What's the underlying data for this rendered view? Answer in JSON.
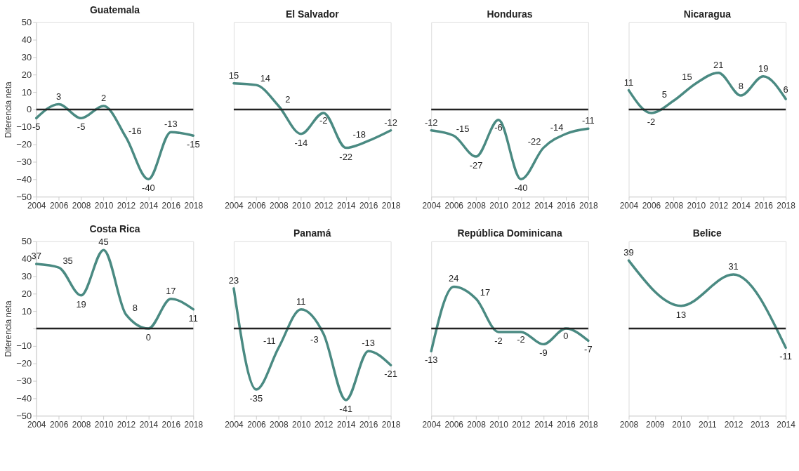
{
  "chart_data": [
    {
      "type": "line",
      "title": "Guatemala",
      "ylabel": "Diferencia neta",
      "x": [
        2004,
        2006,
        2008,
        2010,
        2012,
        2014,
        2016,
        2018
      ],
      "series": [
        {
          "color": "#4a8a82",
          "values": [
            -5,
            3,
            -5,
            2,
            -16,
            -40,
            -13,
            -15
          ]
        }
      ],
      "xlim": [
        2004,
        2018
      ],
      "xticks": [
        2004,
        2006,
        2008,
        2010,
        2012,
        2014,
        2016,
        2018
      ],
      "ylim": [
        -50,
        50
      ],
      "yticks": [
        -50,
        -40,
        -30,
        -20,
        -10,
        0,
        10,
        20,
        30,
        40,
        50
      ],
      "data_labels": true,
      "grid": false,
      "ref_lines": [
        {
          "axis": "y",
          "value": 0,
          "color": "#222222"
        }
      ]
    },
    {
      "type": "line",
      "title": "El Salvador",
      "x": [
        2004,
        2006,
        2008,
        2010,
        2012,
        2014,
        2016,
        2018
      ],
      "series": [
        {
          "color": "#4a8a82",
          "values": [
            15,
            14,
            2,
            -14,
            -2,
            -22,
            -18,
            -12
          ]
        }
      ],
      "xlim": [
        2004,
        2018
      ],
      "xticks": [
        2004,
        2006,
        2008,
        2010,
        2012,
        2014,
        2016,
        2018
      ],
      "ylim": [
        -50,
        50
      ],
      "tick_labels": "x",
      "data_labels": true,
      "grid": false,
      "ref_lines": [
        {
          "axis": "y",
          "value": 0,
          "color": "#222222"
        }
      ]
    },
    {
      "type": "line",
      "title": "Honduras",
      "x": [
        2004,
        2006,
        2008,
        2010,
        2012,
        2014,
        2016,
        2018
      ],
      "series": [
        {
          "color": "#4a8a82",
          "values": [
            -12,
            -15,
            -27,
            -6,
            -40,
            -22,
            -14,
            -11
          ]
        }
      ],
      "xlim": [
        2004,
        2018
      ],
      "xticks": [
        2004,
        2006,
        2008,
        2010,
        2012,
        2014,
        2016,
        2018
      ],
      "ylim": [
        -50,
        50
      ],
      "tick_labels": "x",
      "data_labels": true,
      "grid": false,
      "ref_lines": [
        {
          "axis": "y",
          "value": 0,
          "color": "#222222"
        }
      ]
    },
    {
      "type": "line",
      "title": "Nicaragua",
      "x": [
        2004,
        2006,
        2008,
        2010,
        2012,
        2014,
        2016,
        2018
      ],
      "series": [
        {
          "color": "#4a8a82",
          "values": [
            11,
            -2,
            5,
            15,
            21,
            8,
            19,
            6
          ]
        }
      ],
      "xlim": [
        2004,
        2018
      ],
      "xticks": [
        2004,
        2006,
        2008,
        2010,
        2012,
        2014,
        2016,
        2018
      ],
      "ylim": [
        -50,
        50
      ],
      "tick_labels": "x",
      "data_labels": true,
      "grid": false,
      "ref_lines": [
        {
          "axis": "y",
          "value": 0,
          "color": "#222222"
        }
      ]
    },
    {
      "type": "line",
      "title": "Costa Rica",
      "ylabel": "Diferencia neta",
      "x": [
        2004,
        2006,
        2008,
        2010,
        2012,
        2014,
        2016,
        2018
      ],
      "series": [
        {
          "color": "#4a8a82",
          "values": [
            37,
            35,
            19,
            45,
            8,
            0,
            17,
            11
          ]
        }
      ],
      "xlim": [
        2004,
        2018
      ],
      "xticks": [
        2004,
        2006,
        2008,
        2010,
        2012,
        2014,
        2016,
        2018
      ],
      "ylim": [
        -50,
        50
      ],
      "yticks": [
        -50,
        -40,
        -30,
        -20,
        -10,
        {
          "value": 0,
          "label": null
        },
        10,
        20,
        30,
        40,
        50
      ],
      "data_labels": true,
      "grid": false,
      "ref_lines": [
        {
          "axis": "y",
          "value": 0,
          "color": "#222222"
        }
      ]
    },
    {
      "type": "line",
      "title": "Panamá",
      "x": [
        2004,
        2006,
        2008,
        2010,
        2012,
        2014,
        2016,
        2018
      ],
      "series": [
        {
          "color": "#4a8a82",
          "values": [
            23,
            -35,
            -11,
            11,
            -3,
            -41,
            -13,
            -21
          ]
        }
      ],
      "xlim": [
        2004,
        2018
      ],
      "xticks": [
        2004,
        2006,
        2008,
        2010,
        2012,
        2014,
        2016,
        2018
      ],
      "ylim": [
        -50,
        50
      ],
      "tick_labels": "x",
      "data_labels": true,
      "grid": false,
      "ref_lines": [
        {
          "axis": "y",
          "value": 0,
          "color": "#222222"
        }
      ]
    },
    {
      "type": "line",
      "title": "República Dominicana",
      "x": [
        2004,
        2006,
        2008,
        2010,
        2012,
        2014,
        2016,
        2018
      ],
      "series": [
        {
          "color": "#4a8a82",
          "values": [
            -13,
            24,
            17,
            -2,
            -2,
            -9,
            0,
            -7
          ]
        }
      ],
      "xlim": [
        2004,
        2018
      ],
      "xticks": [
        2004,
        2006,
        2008,
        2010,
        2012,
        2014,
        2016,
        2018
      ],
      "ylim": [
        -50,
        50
      ],
      "tick_labels": "x",
      "data_labels": true,
      "grid": false,
      "ref_lines": [
        {
          "axis": "y",
          "value": 0,
          "color": "#222222"
        }
      ]
    },
    {
      "type": "line",
      "title": "Belice",
      "x": [
        2008,
        2010,
        2012,
        2014
      ],
      "series": [
        {
          "color": "#4a8a82",
          "values": [
            39,
            13,
            31,
            -11
          ]
        }
      ],
      "xlim": [
        2008,
        2014
      ],
      "xticks": [
        2008,
        2009,
        2010,
        2011,
        2012,
        2013,
        2014
      ],
      "ylim": [
        -50,
        50
      ],
      "tick_labels": "x",
      "data_labels": true,
      "grid": false,
      "ref_lines": [
        {
          "axis": "y",
          "value": 0,
          "color": "#222222"
        }
      ]
    }
  ]
}
